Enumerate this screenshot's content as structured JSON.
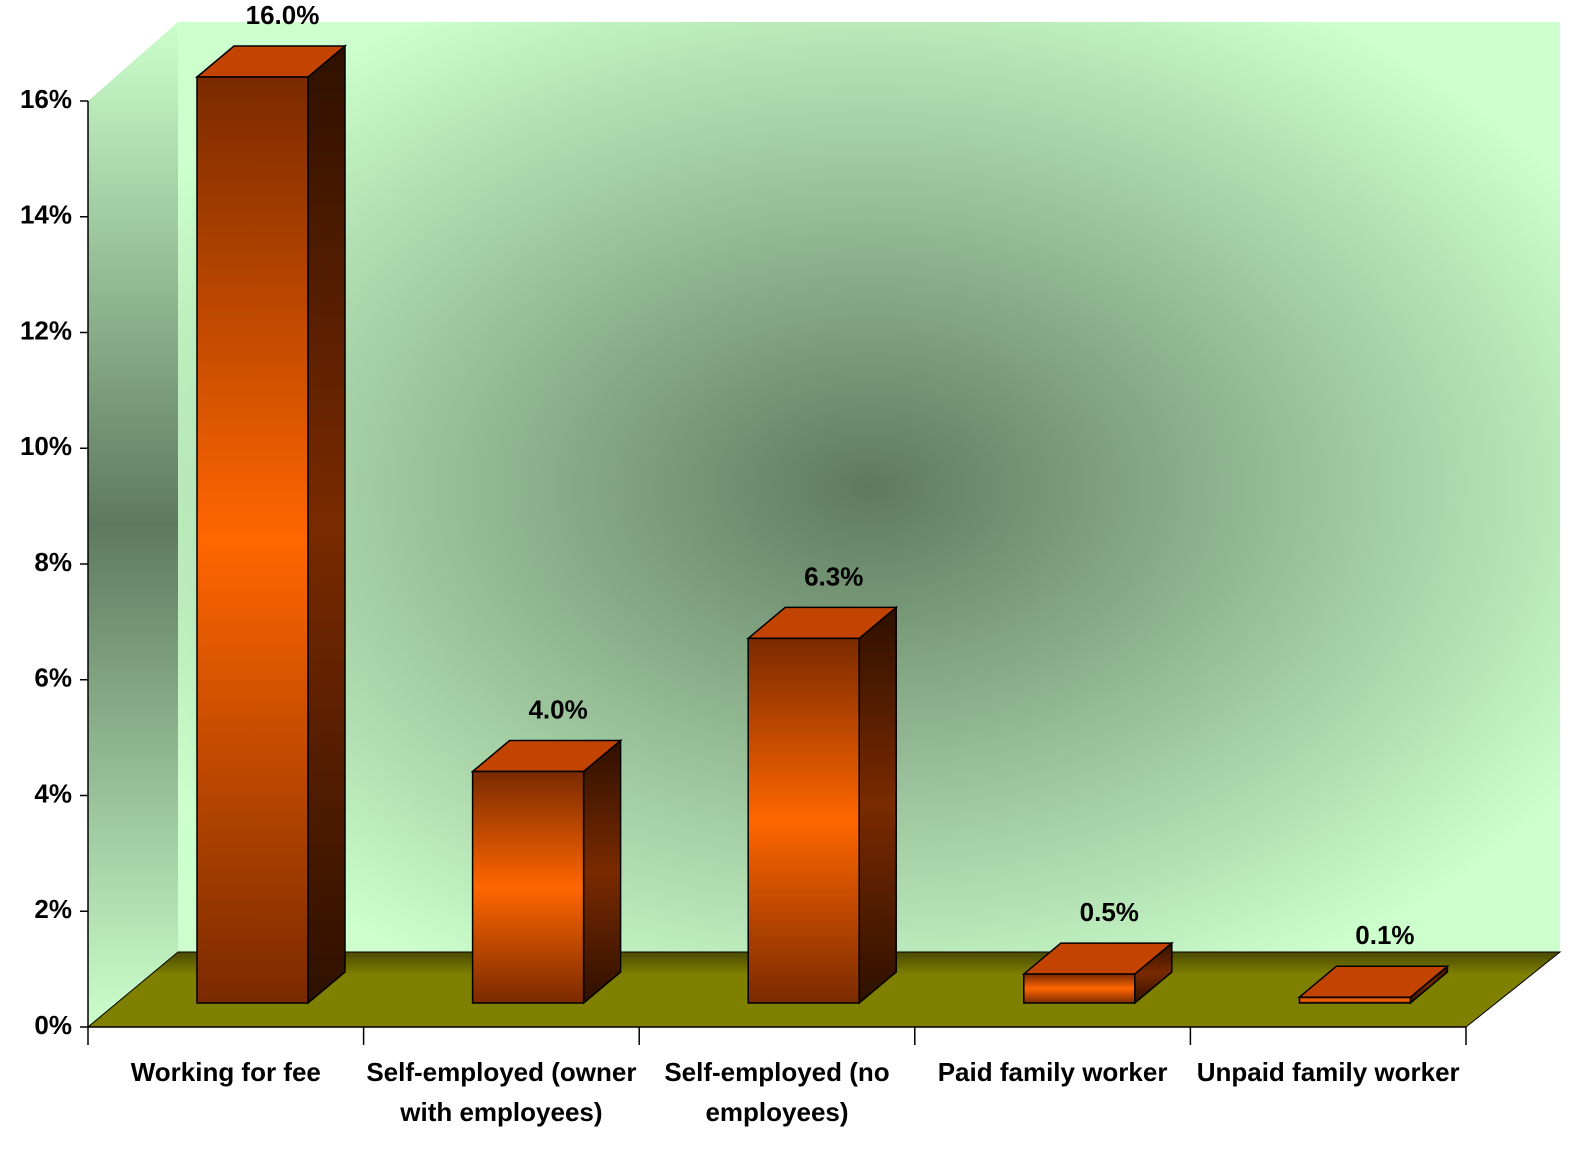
{
  "chart_data": {
    "type": "bar3d",
    "categories": [
      "Working for fee",
      "Self-employed (owner with employees)",
      "Self-employed (no employees)",
      "Paid family worker",
      "Unpaid family worker"
    ],
    "values": [
      16.0,
      4.0,
      6.3,
      0.5,
      0.1
    ],
    "value_labels": [
      "16.0%",
      "4.0%",
      "6.3%",
      "0.5%",
      "0.1%"
    ],
    "color": "#ff6600",
    "ylim": [
      0,
      16
    ],
    "yticks": [
      {
        "value": 0,
        "label": "0%"
      },
      {
        "value": 2,
        "label": "2%"
      },
      {
        "value": 4,
        "label": "4%"
      },
      {
        "value": 6,
        "label": "6%"
      },
      {
        "value": 8,
        "label": "8%"
      },
      {
        "value": 10,
        "label": "10%"
      },
      {
        "value": 12,
        "label": "12%"
      },
      {
        "value": 14,
        "label": "14%"
      },
      {
        "value": 16,
        "label": "16%"
      }
    ]
  }
}
